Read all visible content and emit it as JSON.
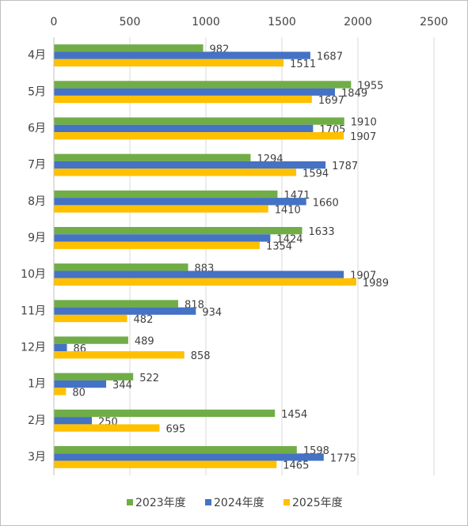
{
  "chart_data": {
    "type": "hbar",
    "categories": [
      "4月",
      "5月",
      "6月",
      "7月",
      "8月",
      "9月",
      "10月",
      "11月",
      "12月",
      "1月",
      "2月",
      "3月"
    ],
    "series": [
      {
        "name": "2023年度",
        "color": "#70ad47",
        "values": [
          982,
          1955,
          1910,
          1294,
          1471,
          1633,
          883,
          818,
          489,
          522,
          1454,
          1598
        ]
      },
      {
        "name": "2024年度",
        "color": "#4472c4",
        "values": [
          1687,
          1849,
          1705,
          1787,
          1660,
          1424,
          1907,
          934,
          86,
          344,
          250,
          1775
        ]
      },
      {
        "name": "2025年度",
        "color": "#ffc000",
        "values": [
          1511,
          1697,
          1907,
          1594,
          1410,
          1354,
          1989,
          482,
          858,
          80,
          695,
          1465
        ]
      }
    ],
    "xlim": [
      0,
      2500
    ],
    "xticks": [
      0,
      500,
      1000,
      1500,
      2000,
      2500
    ],
    "grid": true,
    "legend": "bottom"
  }
}
